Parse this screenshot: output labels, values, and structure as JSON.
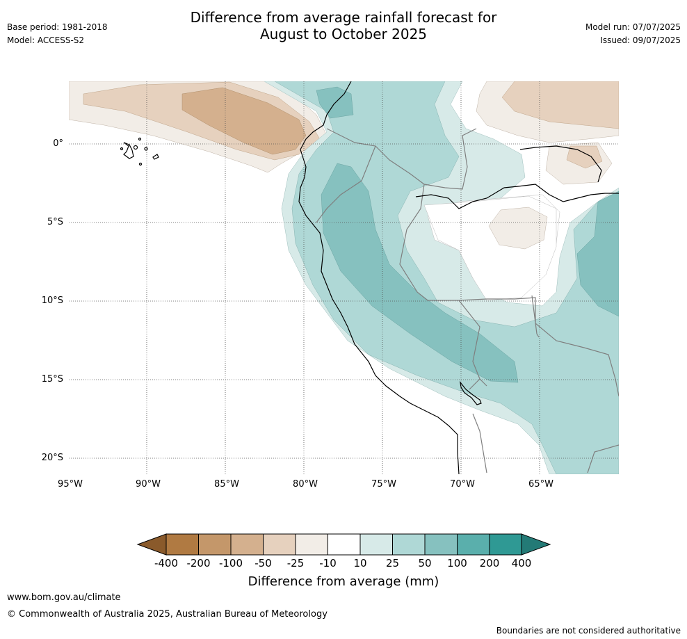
{
  "title_line1": "Difference from average rainfall forecast for",
  "title_line2": "August to October 2025",
  "base_period": "Base period: 1981-2018",
  "model": "Model: ACCESS-S2",
  "model_run": "Model run: 07/07/2025",
  "issued": "Issued: 09/07/2025",
  "lat_ticks": [
    "0°",
    "5°S",
    "10°S",
    "15°S",
    "20°S"
  ],
  "lon_ticks": [
    "95°W",
    "90°W",
    "85°W",
    "80°W",
    "75°W",
    "70°W",
    "65°W"
  ],
  "colorbar": {
    "title": "Difference from average (mm)",
    "tick_labels": [
      "-400",
      "-200",
      "-100",
      "-50",
      "-25",
      "-10",
      "10",
      "25",
      "50",
      "100",
      "200",
      "400"
    ],
    "colors": [
      "#8a5a2b",
      "#b07a42",
      "#c4976a",
      "#d4b08e",
      "#e6d1be",
      "#f2ede7",
      "#ffffff",
      "#d7eae8",
      "#afd8d6",
      "#86c1bf",
      "#5aafac",
      "#2f9994",
      "#237a76"
    ]
  },
  "footer": {
    "url": "www.bom.gov.au/climate",
    "copyright": "© Commonwealth of Australia 2025, Australian Bureau of Meteorology",
    "disclaimer": "Boundaries are not considered authoritative"
  }
}
